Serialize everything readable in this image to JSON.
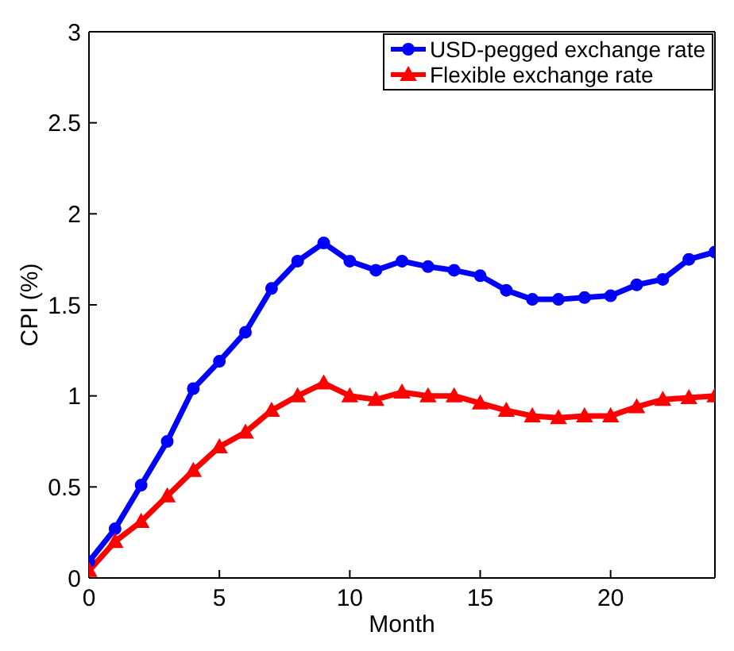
{
  "chart_data": {
    "type": "line",
    "xlabel": "Month",
    "ylabel": "CPI (%)",
    "x": [
      0,
      1,
      2,
      3,
      4,
      5,
      6,
      7,
      8,
      9,
      10,
      11,
      12,
      13,
      14,
      15,
      16,
      17,
      18,
      19,
      20,
      21,
      22,
      23,
      24
    ],
    "series": [
      {
        "name": "USD-pegged exchange rate",
        "color": "#0000ff",
        "marker": "circle",
        "values": [
          0.09,
          0.27,
          0.51,
          0.75,
          1.04,
          1.19,
          1.35,
          1.59,
          1.74,
          1.84,
          1.74,
          1.69,
          1.74,
          1.71,
          1.69,
          1.66,
          1.58,
          1.53,
          1.53,
          1.54,
          1.55,
          1.61,
          1.64,
          1.75,
          1.79
        ]
      },
      {
        "name": "Flexible exchange rate",
        "color": "#ff0000",
        "marker": "triangle",
        "values": [
          0.04,
          0.2,
          0.31,
          0.45,
          0.59,
          0.72,
          0.8,
          0.92,
          1.0,
          1.07,
          1.0,
          0.98,
          1.02,
          1.0,
          1.0,
          0.96,
          0.92,
          0.89,
          0.88,
          0.89,
          0.89,
          0.94,
          0.98,
          0.99,
          1.0
        ]
      }
    ],
    "xlim": [
      0,
      24
    ],
    "xticks": [
      0,
      5,
      10,
      15,
      20
    ],
    "ylim": [
      0,
      3
    ],
    "yticks": [
      0,
      0.5,
      1,
      1.5,
      2,
      2.5,
      3
    ],
    "legend": "top right",
    "line_style": "solid"
  }
}
